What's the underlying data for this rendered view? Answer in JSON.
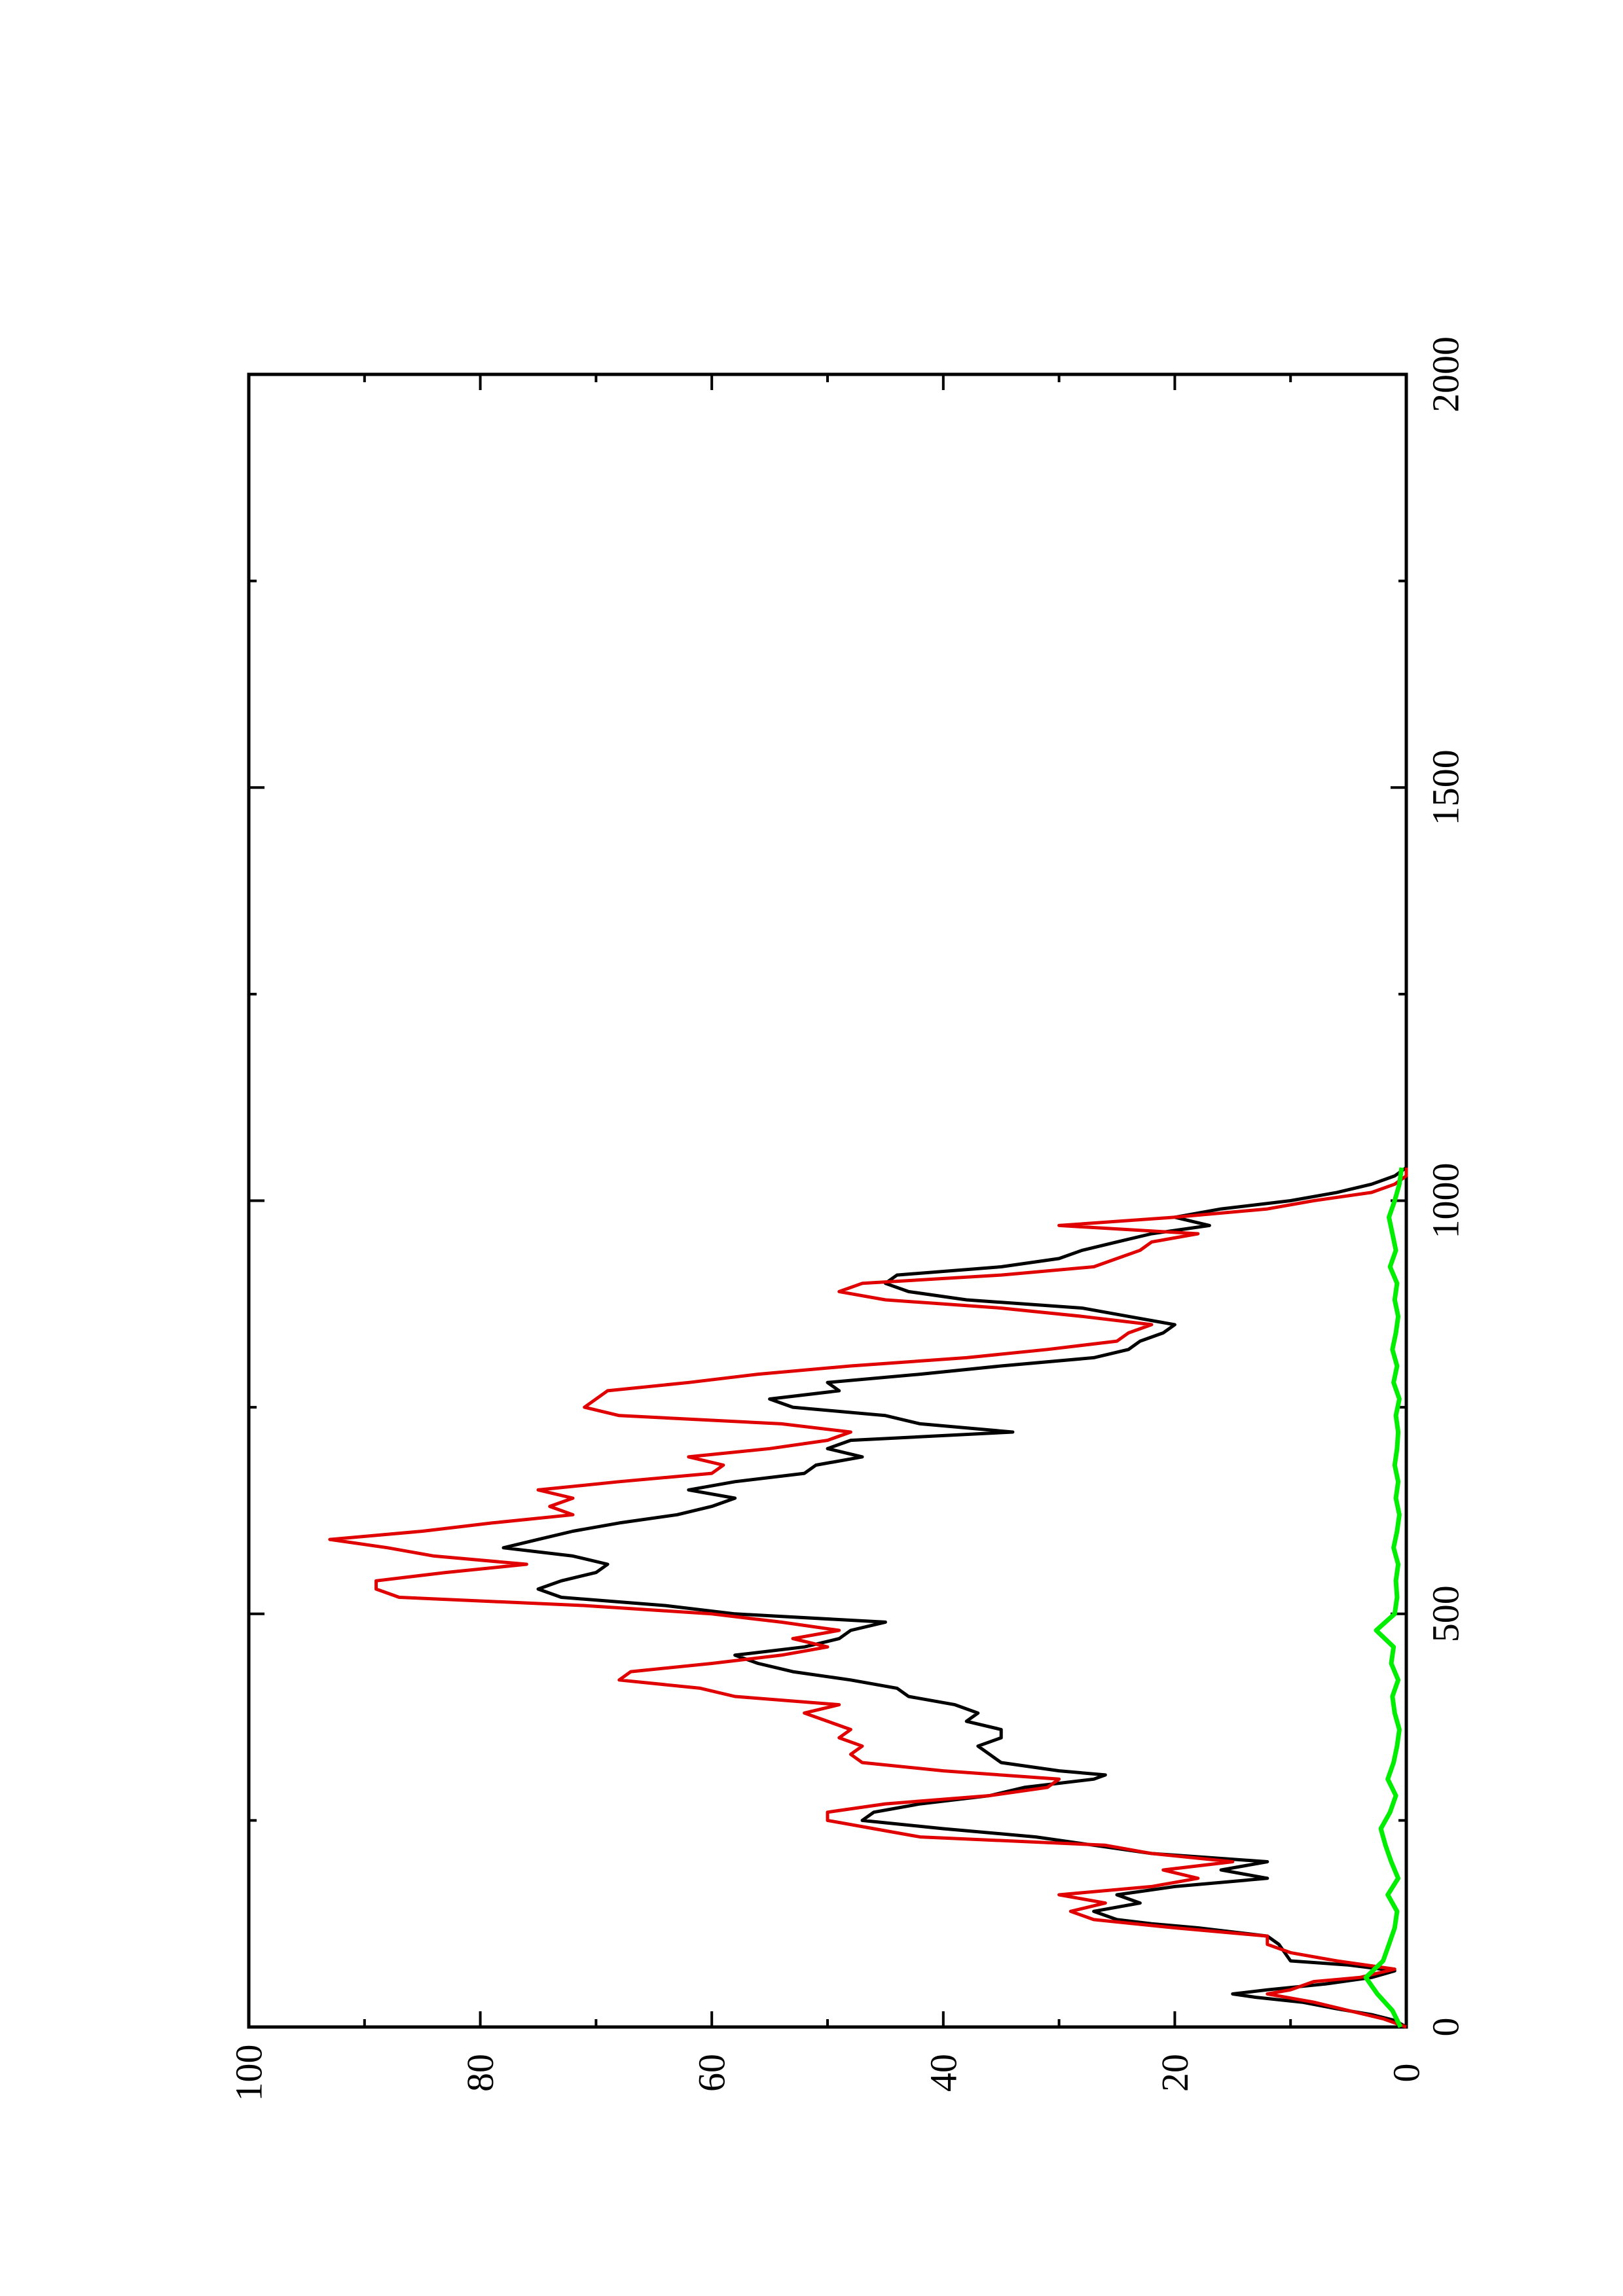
{
  "chart_data": {
    "type": "line",
    "orientation": "rotated-90-ccw",
    "title": "",
    "xlabel": "",
    "ylabel": "",
    "xlim": [
      0,
      2000
    ],
    "ylim": [
      0,
      100
    ],
    "x_tick_labels": [
      "0",
      "500",
      "1000",
      "1500",
      "2000"
    ],
    "y_tick_labels": [
      "0",
      "20",
      "40",
      "60",
      "80",
      "100"
    ],
    "grid": false,
    "legend": "none",
    "colors": {
      "series_black": "#000000",
      "series_red": "#e00000",
      "series_green": "#00ee00",
      "axes": "#000000",
      "background": "#ffffff"
    },
    "series": [
      {
        "color": "#000000",
        "x": [
          0,
          8,
          15,
          22,
          30,
          36,
          40,
          45,
          52,
          60,
          68,
          75,
          80,
          100,
          110,
          120,
          125,
          130,
          140,
          150,
          160,
          170,
          180,
          190,
          200,
          210,
          220,
          230,
          240,
          250,
          260,
          270,
          280,
          290,
          300,
          305,
          310,
          320,
          330,
          340,
          350,
          360,
          370,
          380,
          390,
          400,
          410,
          420,
          430,
          440,
          450,
          460,
          470,
          480,
          490,
          500,
          510,
          520,
          530,
          540,
          550,
          560,
          570,
          580,
          590,
          600,
          610,
          620,
          630,
          640,
          650,
          660,
          670,
          680,
          690,
          700,
          710,
          720,
          730,
          740,
          750,
          760,
          770,
          780,
          790,
          800,
          810,
          820,
          830,
          840,
          850,
          860,
          870,
          880,
          890,
          900,
          910,
          920,
          930,
          940,
          950,
          960,
          970,
          980,
          990,
          1000,
          1010,
          1020,
          1030,
          1040
        ],
        "y": [
          0,
          1,
          3,
          6,
          9,
          13,
          15,
          12,
          7,
          3,
          1,
          5,
          10,
          11,
          12,
          18,
          22,
          25,
          27,
          23,
          25,
          20,
          12,
          16,
          12,
          22,
          27,
          32,
          40,
          47,
          46,
          42,
          36,
          33,
          27,
          26,
          30,
          35,
          36,
          37,
          35,
          35,
          38,
          37,
          39,
          43,
          44,
          48,
          53,
          56,
          58,
          52,
          49,
          48,
          45,
          58,
          64,
          73,
          75,
          73,
          70,
          69,
          72,
          78,
          75,
          72,
          68,
          63,
          60,
          58,
          62,
          58,
          52,
          51,
          47,
          50,
          48,
          34,
          42,
          45,
          53,
          55,
          49,
          50,
          42,
          35,
          27,
          24,
          23,
          21,
          20,
          24,
          28,
          38,
          43,
          45,
          44,
          35,
          30,
          28,
          25,
          22,
          17,
          20,
          16,
          10,
          6,
          3,
          1,
          0
        ]
      },
      {
        "color": "#e00000",
        "x": [
          0,
          10,
          20,
          30,
          40,
          45,
          55,
          60,
          70,
          80,
          90,
          100,
          110,
          120,
          130,
          140,
          150,
          160,
          170,
          180,
          190,
          200,
          210,
          220,
          230,
          240,
          250,
          260,
          270,
          280,
          290,
          300,
          310,
          320,
          330,
          340,
          350,
          360,
          370,
          380,
          390,
          400,
          410,
          420,
          430,
          440,
          450,
          460,
          470,
          480,
          490,
          500,
          510,
          520,
          530,
          540,
          550,
          560,
          570,
          580,
          590,
          600,
          610,
          620,
          630,
          640,
          650,
          660,
          670,
          680,
          690,
          700,
          710,
          720,
          730,
          740,
          750,
          760,
          770,
          780,
          790,
          800,
          810,
          820,
          830,
          840,
          850,
          860,
          870,
          880,
          890,
          900,
          910,
          920,
          930,
          940,
          950,
          960,
          970,
          980,
          990,
          1000,
          1010,
          1020,
          1030,
          1040
        ],
        "y": [
          0,
          2,
          5,
          8,
          12,
          10,
          8,
          4,
          1,
          6,
          10,
          12,
          12,
          20,
          27,
          29,
          26,
          30,
          22,
          18,
          21,
          15,
          22,
          26,
          42,
          46,
          50,
          50,
          45,
          36,
          31,
          30,
          40,
          47,
          48,
          47,
          49,
          48,
          50,
          52,
          49,
          58,
          61,
          68,
          67,
          60,
          54,
          50,
          53,
          49,
          54,
          60,
          71,
          87,
          89,
          89,
          83,
          76,
          84,
          88,
          93,
          85,
          79,
          72,
          74,
          72,
          75,
          68,
          60,
          59,
          62,
          55,
          50,
          48,
          54,
          68,
          71,
          70,
          69,
          62,
          56,
          48,
          38,
          31,
          25,
          24,
          22,
          28,
          35,
          45,
          49,
          47,
          35,
          27,
          25,
          23,
          22,
          18,
          30,
          20,
          12,
          8,
          3,
          1,
          0,
          0
        ]
      },
      {
        "color": "#00ee00",
        "x": [
          0,
          20,
          40,
          60,
          80,
          100,
          120,
          140,
          160,
          180,
          200,
          220,
          240,
          260,
          280,
          300,
          320,
          340,
          360,
          380,
          400,
          420,
          440,
          460,
          480,
          500,
          520,
          540,
          560,
          580,
          600,
          620,
          640,
          660,
          680,
          700,
          720,
          740,
          760,
          780,
          800,
          820,
          840,
          860,
          880,
          900,
          920,
          940,
          960,
          980,
          1000,
          1020,
          1040
        ],
        "y": [
          0.5,
          1.2,
          2.5,
          3.5,
          2,
          1.5,
          1,
          0.8,
          1.6,
          0.7,
          1.3,
          1.8,
          2.2,
          1.4,
          0.9,
          1.6,
          1.1,
          0.8,
          0.6,
          1.0,
          1.2,
          0.7,
          1.3,
          1.1,
          2.6,
          1.0,
          0.8,
          0.9,
          0.7,
          1.1,
          0.8,
          0.6,
          0.9,
          0.7,
          1.0,
          0.8,
          0.7,
          0.9,
          0.6,
          1.1,
          0.8,
          1.2,
          0.9,
          0.7,
          1.0,
          0.8,
          1.4,
          0.9,
          1.2,
          1.5,
          1.0,
          0.6,
          0.4
        ]
      }
    ]
  }
}
